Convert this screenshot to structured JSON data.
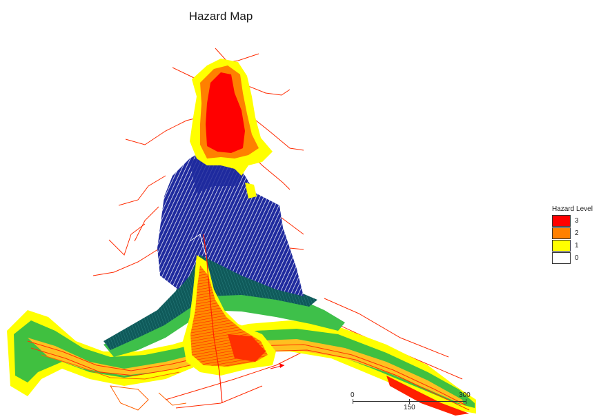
{
  "map": {
    "title": "Hazard Map",
    "legend": {
      "title": "Hazard Level",
      "entries": [
        {
          "label": "3",
          "color": "#ff0000"
        },
        {
          "label": "2",
          "color": "#ff8000"
        },
        {
          "label": "1",
          "color": "#ffff00"
        },
        {
          "label": "0",
          "color": "#ffffff"
        }
      ]
    },
    "scale_bar": {
      "labels": [
        "0",
        "150",
        "300"
      ]
    },
    "colors": {
      "hazard_3": "#ff0000",
      "hazard_2": "#ff8000",
      "hazard_1": "#ffff00",
      "contour_blue": "#1f2a9e",
      "contour_teal": "#0f5a5a",
      "contour_green": "#3ec04a",
      "contour_red": "#ff2a00"
    }
  }
}
